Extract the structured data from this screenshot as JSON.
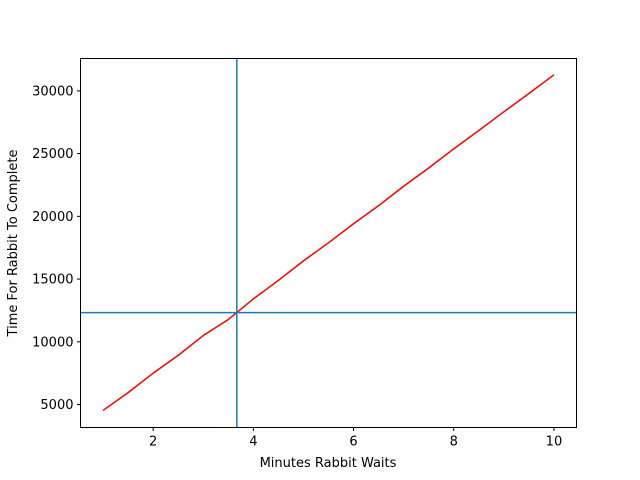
{
  "chart_data": {
    "type": "line",
    "title": "",
    "xlabel": "Minutes Rabbit Waits",
    "ylabel": "Time For Rabbit To Complete",
    "xlim": [
      0.55,
      10.45
    ],
    "ylim": [
      3170,
      32580
    ],
    "x_ticks": [
      2,
      4,
      6,
      8,
      10
    ],
    "y_ticks": [
      5000,
      10000,
      15000,
      20000,
      25000,
      30000
    ],
    "x_tick_labels": [
      "2",
      "4",
      "6",
      "8",
      "10"
    ],
    "y_tick_labels": [
      "5000",
      "10000",
      "15000",
      "20000",
      "25000",
      "30000"
    ],
    "grid": false,
    "series": [
      {
        "color": "#ff0000",
        "x": [
          1,
          1.5,
          2,
          2.5,
          3,
          3.5,
          3.67,
          4,
          4.5,
          5,
          5.5,
          6,
          6.5,
          7,
          7.5,
          8,
          8.5,
          9,
          9.5,
          10
        ],
        "values": [
          4530,
          5950,
          7500,
          8920,
          10500,
          11780,
          12330,
          13420,
          14890,
          16450,
          17890,
          19410,
          20850,
          22400,
          23850,
          25380,
          26840,
          28330,
          29790,
          31280
        ]
      }
    ],
    "reference_lines": {
      "color": "#1f77b4",
      "vertical_x": 3.67,
      "horizontal_y": 12330
    }
  }
}
